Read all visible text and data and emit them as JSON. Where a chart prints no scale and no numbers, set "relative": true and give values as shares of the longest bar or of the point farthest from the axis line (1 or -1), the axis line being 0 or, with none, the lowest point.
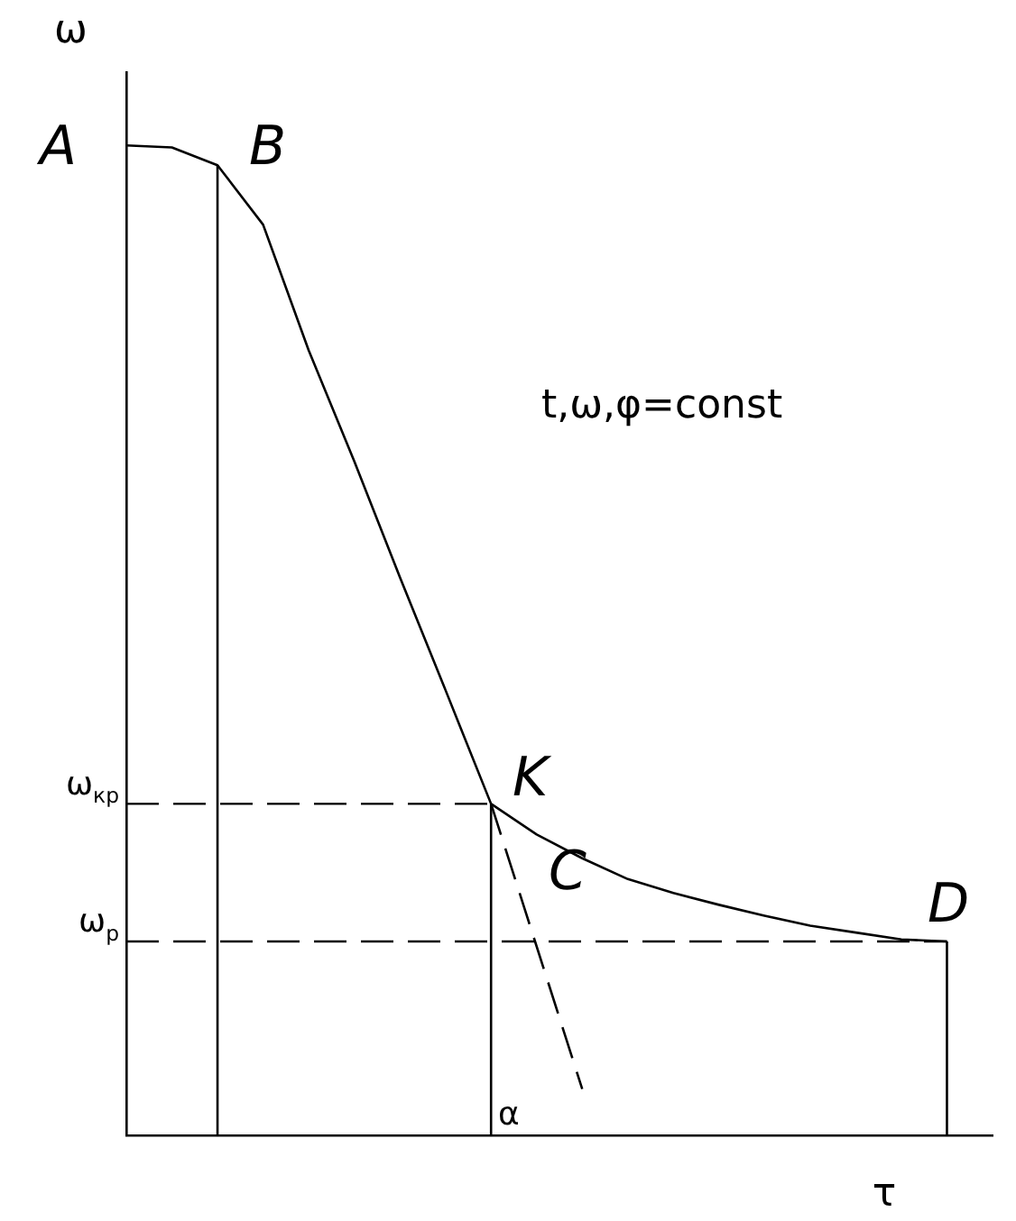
{
  "chart_data": {
    "type": "line",
    "relative": true,
    "ylabel": "ω",
    "xlabel": "τ",
    "marker": "none",
    "line_style": "solid",
    "legend": false,
    "grid": false,
    "categories": [
      null,
      null,
      null,
      null,
      null,
      null,
      null,
      null,
      null,
      null,
      null,
      null,
      null,
      null,
      null,
      null,
      null,
      null,
      null,
      null
    ],
    "series": [
      {
        "color": "#000000",
        "values": [
          1.0,
          0.998,
          0.98,
          0.92,
          0.793,
          0.681,
          0.564,
          0.45,
          0.335,
          0.304,
          0.28,
          0.259,
          0.245,
          0.233,
          0.222,
          0.212,
          0.205,
          0.198,
          0.196,
          null
        ]
      },
      {
        "type": "line",
        "color": "#000000",
        "line_style": "dashed",
        "values": [
          null,
          null,
          null,
          null,
          null,
          null,
          null,
          null,
          0.335,
          0.191,
          0.047,
          null,
          null,
          null,
          null,
          null,
          null,
          null,
          null,
          null
        ]
      }
    ],
    "ref_lines": [
      {
        "axis": "y",
        "value": 0.335,
        "label": "ω$_{кр}$",
        "color": "#000000",
        "line_style": "dashed"
      },
      {
        "axis": "y",
        "value": 0.196,
        "label": "ω$_{р}$",
        "color": "#000000",
        "line_style": "dashed"
      }
    ],
    "annotations": [
      "A",
      "B",
      "K",
      "C",
      "D",
      "α",
      "t,ω,φ=const"
    ]
  }
}
